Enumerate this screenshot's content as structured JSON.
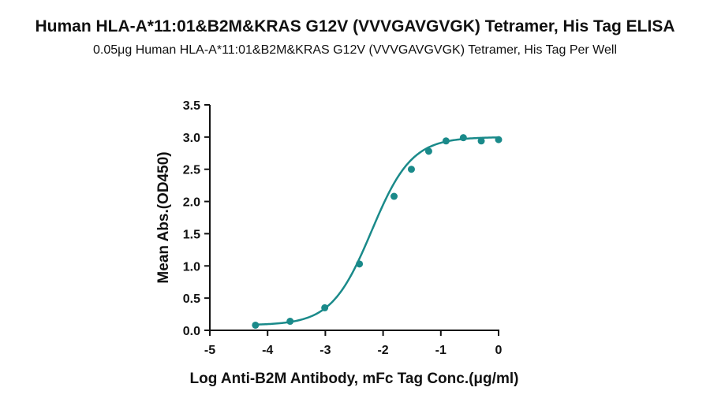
{
  "chart_data": {
    "type": "scatter",
    "title": "Human HLA-A*11:01&B2M&KRAS G12V (VVVGAVGVGK) Tetramer, His Tag ELISA",
    "subtitle": "0.05μg Human HLA-A*11:01&B2M&KRAS G12V (VVVGAVGVGK) Tetramer, His Tag Per Well",
    "xlabel": "Log Anti-B2M Antibody, mFc Tag Conc.(μg/ml)",
    "ylabel": "Mean Abs.(OD450)",
    "xlim": [
      -5,
      0
    ],
    "ylim": [
      0,
      3.5
    ],
    "xticks": [
      "-5",
      "-4",
      "-3",
      "-2",
      "-1",
      "0"
    ],
    "yticks": [
      "0.0",
      "0.5",
      "1.0",
      "1.5",
      "2.0",
      "2.5",
      "3.0",
      "3.5"
    ],
    "color": "#1a8a8a",
    "grid": false,
    "series": [
      {
        "x": [
          -4.21,
          -3.61,
          -3.01,
          -2.41,
          -1.81,
          -1.51,
          -1.21,
          -0.91,
          -0.61,
          -0.3,
          0.0
        ],
        "y": [
          0.08,
          0.14,
          0.35,
          1.03,
          2.08,
          2.5,
          2.78,
          2.94,
          2.99,
          2.94,
          2.96
        ]
      }
    ],
    "fit": {
      "model": "4PL",
      "bottom": 0.08,
      "top": 3.0,
      "log_ec50": -2.2,
      "hill": 1.25
    }
  }
}
